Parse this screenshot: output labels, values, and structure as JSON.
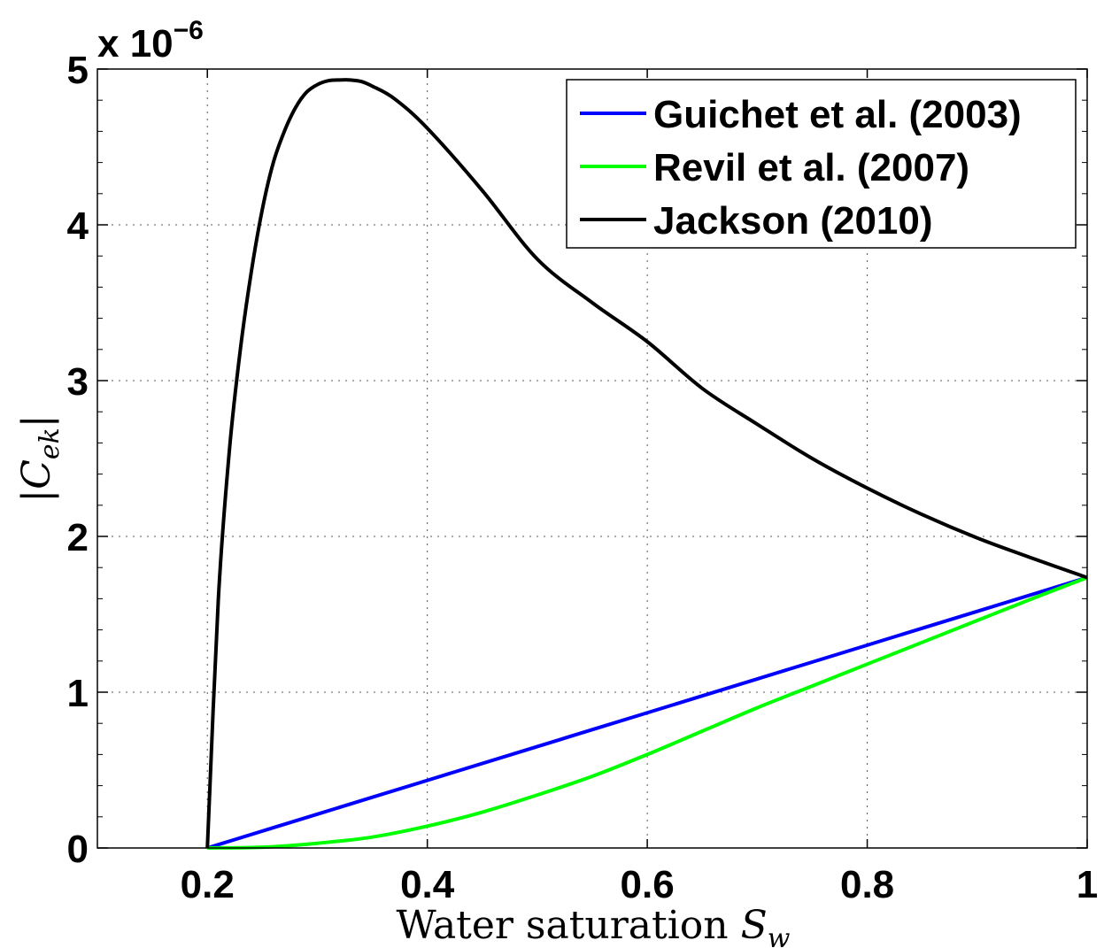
{
  "chart_data": {
    "type": "line",
    "xlabel": "Water saturation",
    "xlabel_symbol": "S",
    "xlabel_subscript": "w",
    "ylabel": "|C",
    "ylabel_subscript": "ek",
    "ylabel_close": "|",
    "y_exponent_prefix": "x 10",
    "y_exponent_power": "−6",
    "xlim": [
      0.1,
      1.0
    ],
    "ylim": [
      0,
      5
    ],
    "grid": true,
    "grid_style": "dotted",
    "legend_position": "top-right",
    "x_ticks": [
      0.2,
      0.4,
      0.6,
      0.8,
      1.0
    ],
    "x_tick_labels": [
      "0.2",
      "0.4",
      "0.6",
      "0.8",
      "1"
    ],
    "y_ticks": [
      0,
      1,
      2,
      3,
      4,
      5
    ],
    "y_tick_labels": [
      "0",
      "1",
      "2",
      "3",
      "4",
      "5"
    ],
    "series": [
      {
        "name": "Guichet et al. (2003)",
        "color": "#0000ff",
        "x": [
          0.2,
          0.3,
          0.4,
          0.5,
          0.6,
          0.7,
          0.8,
          0.9,
          1.0
        ],
        "y": [
          0.0,
          0.217,
          0.434,
          0.651,
          0.868,
          1.085,
          1.302,
          1.519,
          1.736
        ]
      },
      {
        "name": "Revil et al. (2007)",
        "color": "#00ff00",
        "x": [
          0.2,
          0.25,
          0.3,
          0.35,
          0.4,
          0.45,
          0.5,
          0.55,
          0.6,
          0.65,
          0.7,
          0.75,
          0.8,
          0.85,
          0.9,
          0.95,
          1.0
        ],
        "y": [
          0.0,
          0.005,
          0.03,
          0.07,
          0.14,
          0.23,
          0.34,
          0.46,
          0.6,
          0.75,
          0.9,
          1.04,
          1.18,
          1.32,
          1.46,
          1.6,
          1.736
        ]
      },
      {
        "name": "Jackson (2010)",
        "color": "#000000",
        "x": [
          0.2,
          0.21,
          0.22,
          0.23,
          0.24,
          0.25,
          0.26,
          0.27,
          0.28,
          0.29,
          0.3,
          0.31,
          0.32,
          0.33,
          0.34,
          0.35,
          0.37,
          0.4,
          0.45,
          0.5,
          0.55,
          0.6,
          0.65,
          0.7,
          0.75,
          0.8,
          0.85,
          0.9,
          0.95,
          1.0
        ],
        "y": [
          0.0,
          1.6,
          2.55,
          3.2,
          3.7,
          4.1,
          4.4,
          4.6,
          4.75,
          4.85,
          4.9,
          4.925,
          4.93,
          4.93,
          4.92,
          4.89,
          4.81,
          4.62,
          4.22,
          3.78,
          3.5,
          3.25,
          2.95,
          2.72,
          2.5,
          2.31,
          2.14,
          1.99,
          1.86,
          1.736
        ]
      }
    ]
  }
}
